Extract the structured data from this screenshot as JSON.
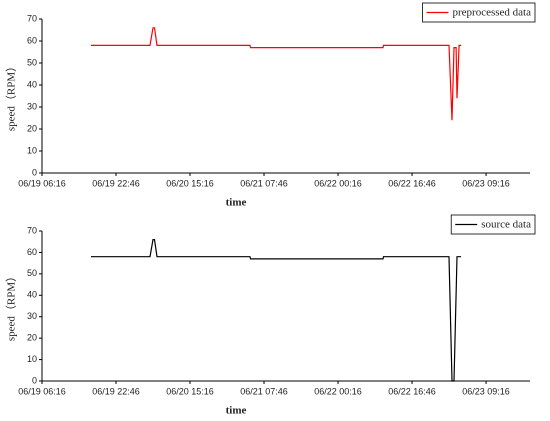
{
  "chart_data": [
    {
      "type": "line",
      "xlabel": "time",
      "ylabel": "speed（RPM）",
      "legend": "upper right",
      "x": [
        "06/19 17:11",
        "06/20 06:21",
        "06/20 07:01",
        "06/20 07:21",
        "06/20 07:54",
        "06/21 04:39",
        "06/21 04:45",
        "06/22 10:18",
        "06/22 10:24",
        "06/23 01:01",
        "06/23 01:41",
        "06/23 02:08",
        "06/23 02:35",
        "06/23 02:48",
        "06/23 03:15",
        "06/23 03:42"
      ],
      "series": [
        {
          "name": "preprocessed data",
          "color": "#ff0000",
          "values": [
            58,
            58,
            66,
            66,
            58,
            58,
            57,
            57,
            58,
            58,
            24,
            57,
            57,
            34,
            58,
            58
          ]
        }
      ],
      "xlim": [
        "06/19 06:16",
        "06/23 19:04"
      ],
      "ylim": [
        0,
        70
      ],
      "xticks": [
        "06/19 06:16",
        "06/19 22:46",
        "06/20 15:16",
        "06/21 07:46",
        "06/22 00:16",
        "06/22 16:46",
        "06/23 09:16"
      ],
      "yticks": [
        0,
        10,
        20,
        30,
        40,
        50,
        60,
        70
      ]
    },
    {
      "type": "line",
      "xlabel": "time",
      "ylabel": "speed（RPM）",
      "legend": "upper right",
      "x": [
        "06/19 17:11",
        "06/20 06:21",
        "06/20 07:01",
        "06/20 07:21",
        "06/20 07:54",
        "06/21 04:39",
        "06/21 04:45",
        "06/22 10:18",
        "06/22 10:24",
        "06/23 01:01",
        "06/23 01:41",
        "06/23 02:08",
        "06/23 02:48",
        "06/23 03:42"
      ],
      "series": [
        {
          "name": "source data",
          "color": "#000000",
          "values": [
            58,
            58,
            66,
            66,
            58,
            58,
            57,
            57,
            58,
            58,
            0,
            0,
            58,
            58
          ]
        }
      ],
      "xlim": [
        "06/19 06:16",
        "06/23 19:04"
      ],
      "ylim": [
        0,
        70
      ],
      "xticks": [
        "06/19 06:16",
        "06/19 22:46",
        "06/20 15:16",
        "06/21 07:46",
        "06/22 00:16",
        "06/22 16:46",
        "06/23 09:16"
      ],
      "yticks": [
        0,
        10,
        20,
        30,
        40,
        50,
        60,
        70
      ]
    }
  ]
}
